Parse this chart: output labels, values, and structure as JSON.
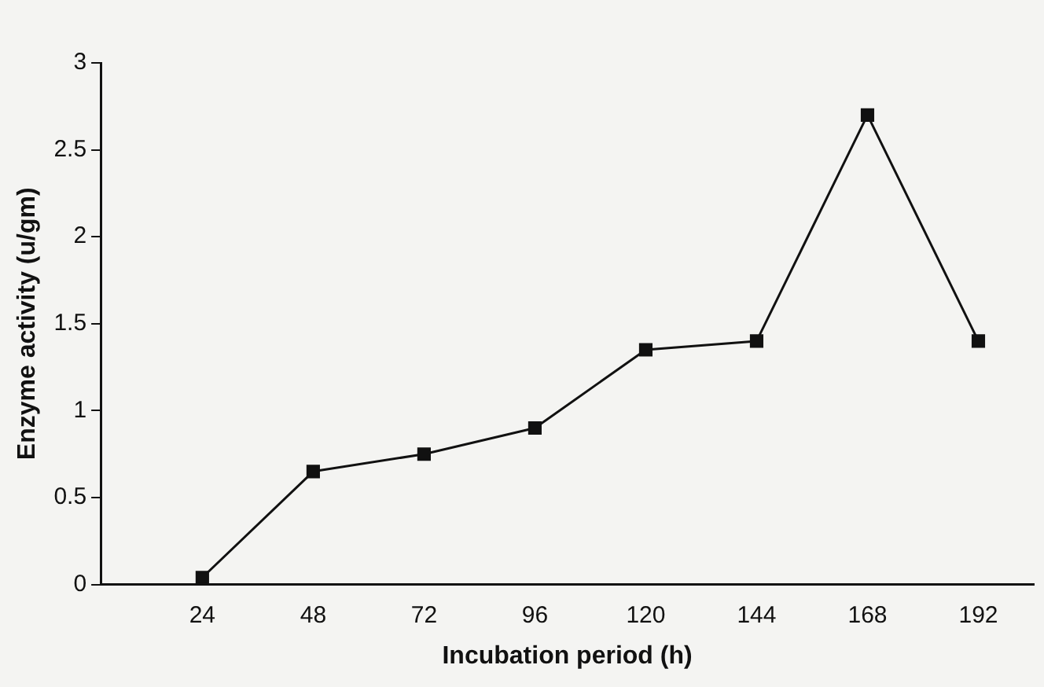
{
  "chart_data": {
    "type": "line",
    "xlabel": "Incubation period (h)",
    "ylabel": "Enzyme activity (u/gm)",
    "x": [
      24,
      48,
      72,
      96,
      120,
      144,
      168,
      192
    ],
    "series": [
      {
        "color": "#111111",
        "values": [
          0.04,
          0.65,
          0.75,
          0.9,
          1.35,
          1.4,
          2.7,
          1.4
        ]
      }
    ],
    "xlim": [
      2,
      204
    ],
    "xticks": [
      24,
      48,
      72,
      96,
      120,
      144,
      168,
      192
    ],
    "ylim": [
      0,
      3
    ],
    "yticks": [
      0,
      0.5,
      1,
      1.5,
      2,
      2.5,
      3
    ],
    "grid": false,
    "legend": false,
    "marker": "square",
    "line_style": "solid"
  }
}
